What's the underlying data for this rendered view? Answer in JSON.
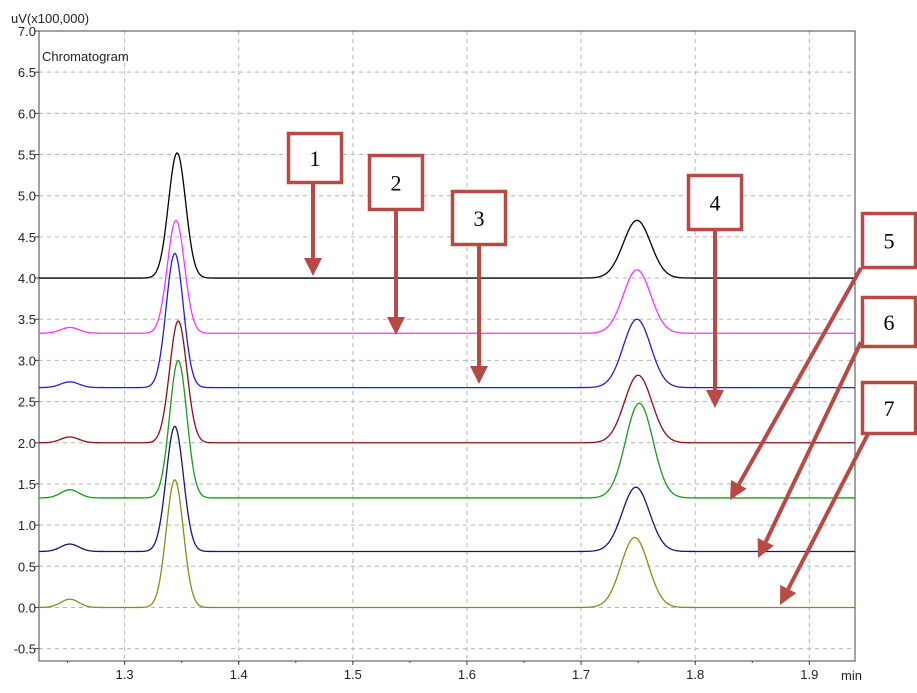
{
  "chart_data": {
    "type": "line",
    "title": "Chromatogram",
    "ylabel": "uV(x100,000)",
    "xunit": "min",
    "xlim": [
      1.225,
      1.94
    ],
    "ylim": [
      -0.65,
      7.0
    ],
    "grid": true,
    "xticks": [
      1.3,
      1.4,
      1.5,
      1.6,
      1.7,
      1.8,
      1.9
    ],
    "xtick_labels": [
      "1.3",
      "1.4",
      "1.5",
      "1.6",
      "1.7",
      "1.8",
      "1.9"
    ],
    "yticks": [
      -0.5,
      0.0,
      0.5,
      1.0,
      1.5,
      2.0,
      2.5,
      3.0,
      3.5,
      4.0,
      4.5,
      5.0,
      5.5,
      6.0,
      6.5,
      7.0
    ],
    "ytick_labels": [
      "-0.5",
      "0.0",
      "0.5",
      "1.0",
      "1.5",
      "2.0",
      "2.5",
      "3.0",
      "3.5",
      "4.0",
      "4.5",
      "5.0",
      "5.5",
      "6.0",
      "6.5",
      "7.0"
    ],
    "series": [
      {
        "color": "#000000",
        "baseline": 4.0,
        "peak1": {
          "rt": 1.346,
          "height": 1.52
        },
        "peak2": {
          "rt": 1.749,
          "height": 0.7
        },
        "bump": 0.0
      },
      {
        "color": "#ff33ff",
        "baseline": 3.33,
        "peak1": {
          "rt": 1.345,
          "height": 1.37
        },
        "peak2": {
          "rt": 1.749,
          "height": 0.77
        },
        "bump": 0.07
      },
      {
        "color": "#1f1fdc",
        "baseline": 2.67,
        "peak1": {
          "rt": 1.344,
          "height": 1.63
        },
        "peak2": {
          "rt": 1.749,
          "height": 0.83
        },
        "bump": 0.07
      },
      {
        "color": "#8b1010",
        "baseline": 2.0,
        "peak1": {
          "rt": 1.347,
          "height": 1.48
        },
        "peak2": {
          "rt": 1.75,
          "height": 0.82
        },
        "bump": 0.07
      },
      {
        "color": "#1a9a1a",
        "baseline": 1.33,
        "peak1": {
          "rt": 1.347,
          "height": 1.67
        },
        "peak2": {
          "rt": 1.751,
          "height": 1.15
        },
        "bump": 0.1
      },
      {
        "color": "#141480",
        "baseline": 0.68,
        "peak1": {
          "rt": 1.344,
          "height": 1.52
        },
        "peak2": {
          "rt": 1.748,
          "height": 0.78
        },
        "bump": 0.09
      },
      {
        "color": "#8c8c14",
        "baseline": 0.0,
        "peak1": {
          "rt": 1.344,
          "height": 1.55
        },
        "peak2": {
          "rt": 1.747,
          "height": 0.85
        },
        "bump": 0.1
      }
    ]
  },
  "annotations": {
    "color": "#b84a45",
    "labels": [
      "1",
      "2",
      "3",
      "4",
      "5",
      "6",
      "7"
    ]
  }
}
